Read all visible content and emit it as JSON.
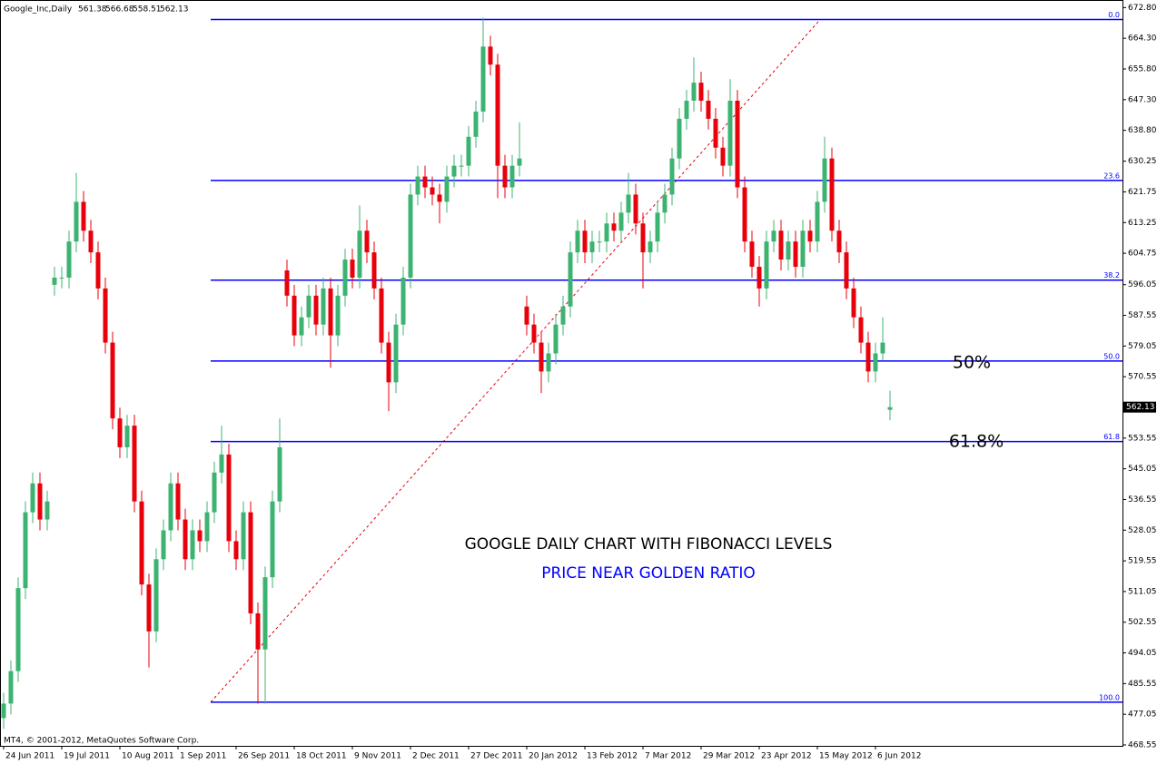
{
  "chart_data": {
    "type": "candlestick",
    "symbol": "Google_Inc,Daily",
    "copyright": "MT4, © 2001-2012, MetaQuotes Software Corp.",
    "title": "GOOGLE DAILY CHART WITH FIBONACCI LEVELS",
    "subtitle": "PRICE NEAR GOLDEN RATIO",
    "annotations": [
      "50%",
      "61.8%"
    ],
    "bull_color": "#3cb371",
    "bear_color": "#e8000b",
    "open": [
      476,
      480,
      489,
      512,
      533,
      541,
      531,
      596,
      598,
      598,
      608,
      619,
      611,
      605,
      595,
      580,
      559,
      551,
      557,
      536,
      513,
      500,
      520,
      528,
      541,
      531,
      520,
      528,
      525,
      533,
      544,
      549,
      525,
      520,
      533,
      505,
      495,
      515,
      536,
      600,
      593,
      582,
      587,
      593,
      585,
      595,
      582,
      593,
      603,
      598,
      611,
      605,
      595,
      580,
      569,
      585,
      598,
      621,
      626,
      623,
      621,
      619,
      626,
      629,
      629,
      637,
      644,
      662,
      657,
      629,
      623,
      629,
      590,
      585,
      580,
      572,
      577,
      585,
      590,
      605,
      611,
      605,
      608,
      608,
      613,
      611,
      616,
      621,
      613,
      605,
      608,
      616,
      621,
      631,
      642,
      647,
      652,
      647,
      642,
      634,
      629,
      647,
      623,
      608,
      601,
      595,
      608,
      611,
      603,
      608,
      601,
      611,
      608,
      619,
      631,
      611,
      605,
      595,
      587,
      580,
      572,
      577,
      561.38
    ],
    "high": [
      483,
      492,
      515,
      536,
      544,
      544,
      539,
      601,
      601,
      611,
      627,
      622,
      614,
      608,
      598,
      583,
      562,
      560,
      560,
      539,
      516,
      523,
      531,
      544,
      544,
      534,
      531,
      531,
      536,
      547,
      557,
      552,
      528,
      536,
      536,
      508,
      518,
      539,
      559,
      603,
      596,
      590,
      596,
      596,
      598,
      598,
      596,
      606,
      606,
      618,
      614,
      608,
      598,
      583,
      588,
      601,
      624,
      629,
      629,
      626,
      624,
      629,
      632,
      632,
      640,
      647,
      670,
      665,
      660,
      632,
      632,
      641,
      593,
      588,
      583,
      580,
      588,
      593,
      608,
      614,
      614,
      611,
      611,
      616,
      616,
      619,
      627,
      624,
      616,
      611,
      619,
      624,
      634,
      645,
      650,
      659,
      655,
      650,
      645,
      637,
      653,
      650,
      626,
      611,
      604,
      611,
      614,
      614,
      611,
      611,
      614,
      614,
      622,
      637,
      634,
      614,
      608,
      598,
      590,
      583,
      580,
      587,
      566.68
    ],
    "low": [
      473,
      477,
      486,
      509,
      530,
      528,
      528,
      593,
      595,
      595,
      605,
      608,
      602,
      592,
      577,
      556,
      548,
      548,
      533,
      510,
      490,
      497,
      517,
      525,
      528,
      517,
      517,
      522,
      522,
      530,
      541,
      522,
      517,
      517,
      502,
      480,
      480,
      512,
      533,
      590,
      579,
      579,
      584,
      582,
      582,
      573,
      579,
      590,
      595,
      595,
      602,
      592,
      577,
      561,
      566,
      582,
      595,
      618,
      620,
      618,
      613,
      616,
      623,
      626,
      626,
      634,
      641,
      654,
      620,
      620,
      620,
      626,
      582,
      577,
      566,
      569,
      574,
      582,
      587,
      602,
      602,
      602,
      605,
      605,
      608,
      608,
      613,
      610,
      595,
      602,
      605,
      613,
      618,
      628,
      639,
      644,
      644,
      639,
      631,
      626,
      626,
      620,
      605,
      598,
      590,
      592,
      605,
      600,
      600,
      598,
      598,
      605,
      605,
      616,
      608,
      602,
      592,
      584,
      577,
      569,
      569,
      575,
      558.51
    ],
    "close": [
      480,
      489,
      512,
      533,
      541,
      531,
      536,
      598,
      598,
      608,
      619,
      611,
      605,
      595,
      580,
      559,
      551,
      557,
      536,
      513,
      500,
      520,
      528,
      541,
      531,
      520,
      528,
      525,
      533,
      544,
      549,
      525,
      520,
      533,
      505,
      495,
      515,
      536,
      551,
      593,
      582,
      587,
      593,
      585,
      595,
      582,
      593,
      603,
      598,
      611,
      605,
      595,
      580,
      569,
      585,
      598,
      621,
      626,
      623,
      621,
      619,
      626,
      629,
      629,
      637,
      644,
      662,
      657,
      629,
      623,
      629,
      631,
      585,
      580,
      572,
      577,
      585,
      590,
      605,
      611,
      605,
      608,
      608,
      613,
      611,
      616,
      621,
      613,
      605,
      608,
      616,
      621,
      631,
      642,
      647,
      652,
      647,
      642,
      634,
      629,
      647,
      623,
      608,
      601,
      595,
      608,
      611,
      603,
      608,
      601,
      611,
      608,
      619,
      631,
      611,
      605,
      595,
      587,
      580,
      572,
      577,
      580,
      562.13
    ],
    "xlim": [
      -0.5,
      154
    ],
    "xticks": [
      {
        "value": 0,
        "label": "24 Jun 2011"
      },
      {
        "value": 8,
        "label": "19 Jul 2011"
      },
      {
        "value": 16,
        "label": "10 Aug 2011"
      },
      {
        "value": 24,
        "label": "1 Sep 2011"
      },
      {
        "value": 32,
        "label": "26 Sep 2011"
      },
      {
        "value": 40,
        "label": "18 Oct 2011"
      },
      {
        "value": 48,
        "label": "9 Nov 2011"
      },
      {
        "value": 56,
        "label": "2 Dec 2011"
      },
      {
        "value": 64,
        "label": "27 Dec 2011"
      },
      {
        "value": 72,
        "label": "20 Jan 2012"
      },
      {
        "value": 80,
        "label": "13 Feb 2012"
      },
      {
        "value": 88,
        "label": "7 Mar 2012"
      },
      {
        "value": 96,
        "label": "29 Mar 2012"
      },
      {
        "value": 104,
        "label": "23 Apr 2012"
      },
      {
        "value": 112,
        "label": "15 May 2012"
      },
      {
        "value": 120,
        "label": "6 Jun 2012"
      }
    ],
    "ylim": [
      468.3,
      674.9
    ],
    "yticks": [
      {
        "value": 672.8,
        "label": "672.80"
      },
      {
        "value": 664.3,
        "label": "664.30"
      },
      {
        "value": 655.8,
        "label": "655.80"
      },
      {
        "value": 647.3,
        "label": "647.30"
      },
      {
        "value": 638.8,
        "label": "638.80"
      },
      {
        "value": 630.25,
        "label": "630.25"
      },
      {
        "value": 621.75,
        "label": "621.75"
      },
      {
        "value": 613.25,
        "label": "613.25"
      },
      {
        "value": 604.75,
        "label": "604.75"
      },
      {
        "value": 596.05,
        "label": "596.05"
      },
      {
        "value": 587.55,
        "label": "587.55"
      },
      {
        "value": 579.05,
        "label": "579.05"
      },
      {
        "value": 570.55,
        "label": "570.55"
      },
      {
        "value": 562.05,
        "label": "562.05"
      },
      {
        "value": 553.55,
        "label": "553.55"
      },
      {
        "value": 545.05,
        "label": "545.05"
      },
      {
        "value": 536.55,
        "label": "536.55"
      },
      {
        "value": 528.05,
        "label": "528.05"
      },
      {
        "value": 519.55,
        "label": "519.55"
      },
      {
        "value": 511.05,
        "label": "511.05"
      },
      {
        "value": 502.55,
        "label": "502.55"
      },
      {
        "value": 494.05,
        "label": "494.05"
      },
      {
        "value": 485.55,
        "label": "485.55"
      },
      {
        "value": 477.05,
        "label": "477.05"
      },
      {
        "value": 468.55,
        "label": "468.55"
      }
    ],
    "fib_levels": [
      {
        "label": "0.0",
        "price": 669.5
      },
      {
        "label": "23.6",
        "price": 624.9
      },
      {
        "label": "38.2",
        "price": 597.3
      },
      {
        "label": "50.0",
        "price": 574.9
      },
      {
        "label": "61.8",
        "price": 552.6
      },
      {
        "label": "100.0",
        "price": 480.4
      }
    ],
    "fib_color": "#0000ff",
    "trendline": {
      "x": [
        28.5,
        112.4
      ],
      "y": [
        480.4,
        669.5
      ],
      "color": "#e8000b"
    }
  }
}
